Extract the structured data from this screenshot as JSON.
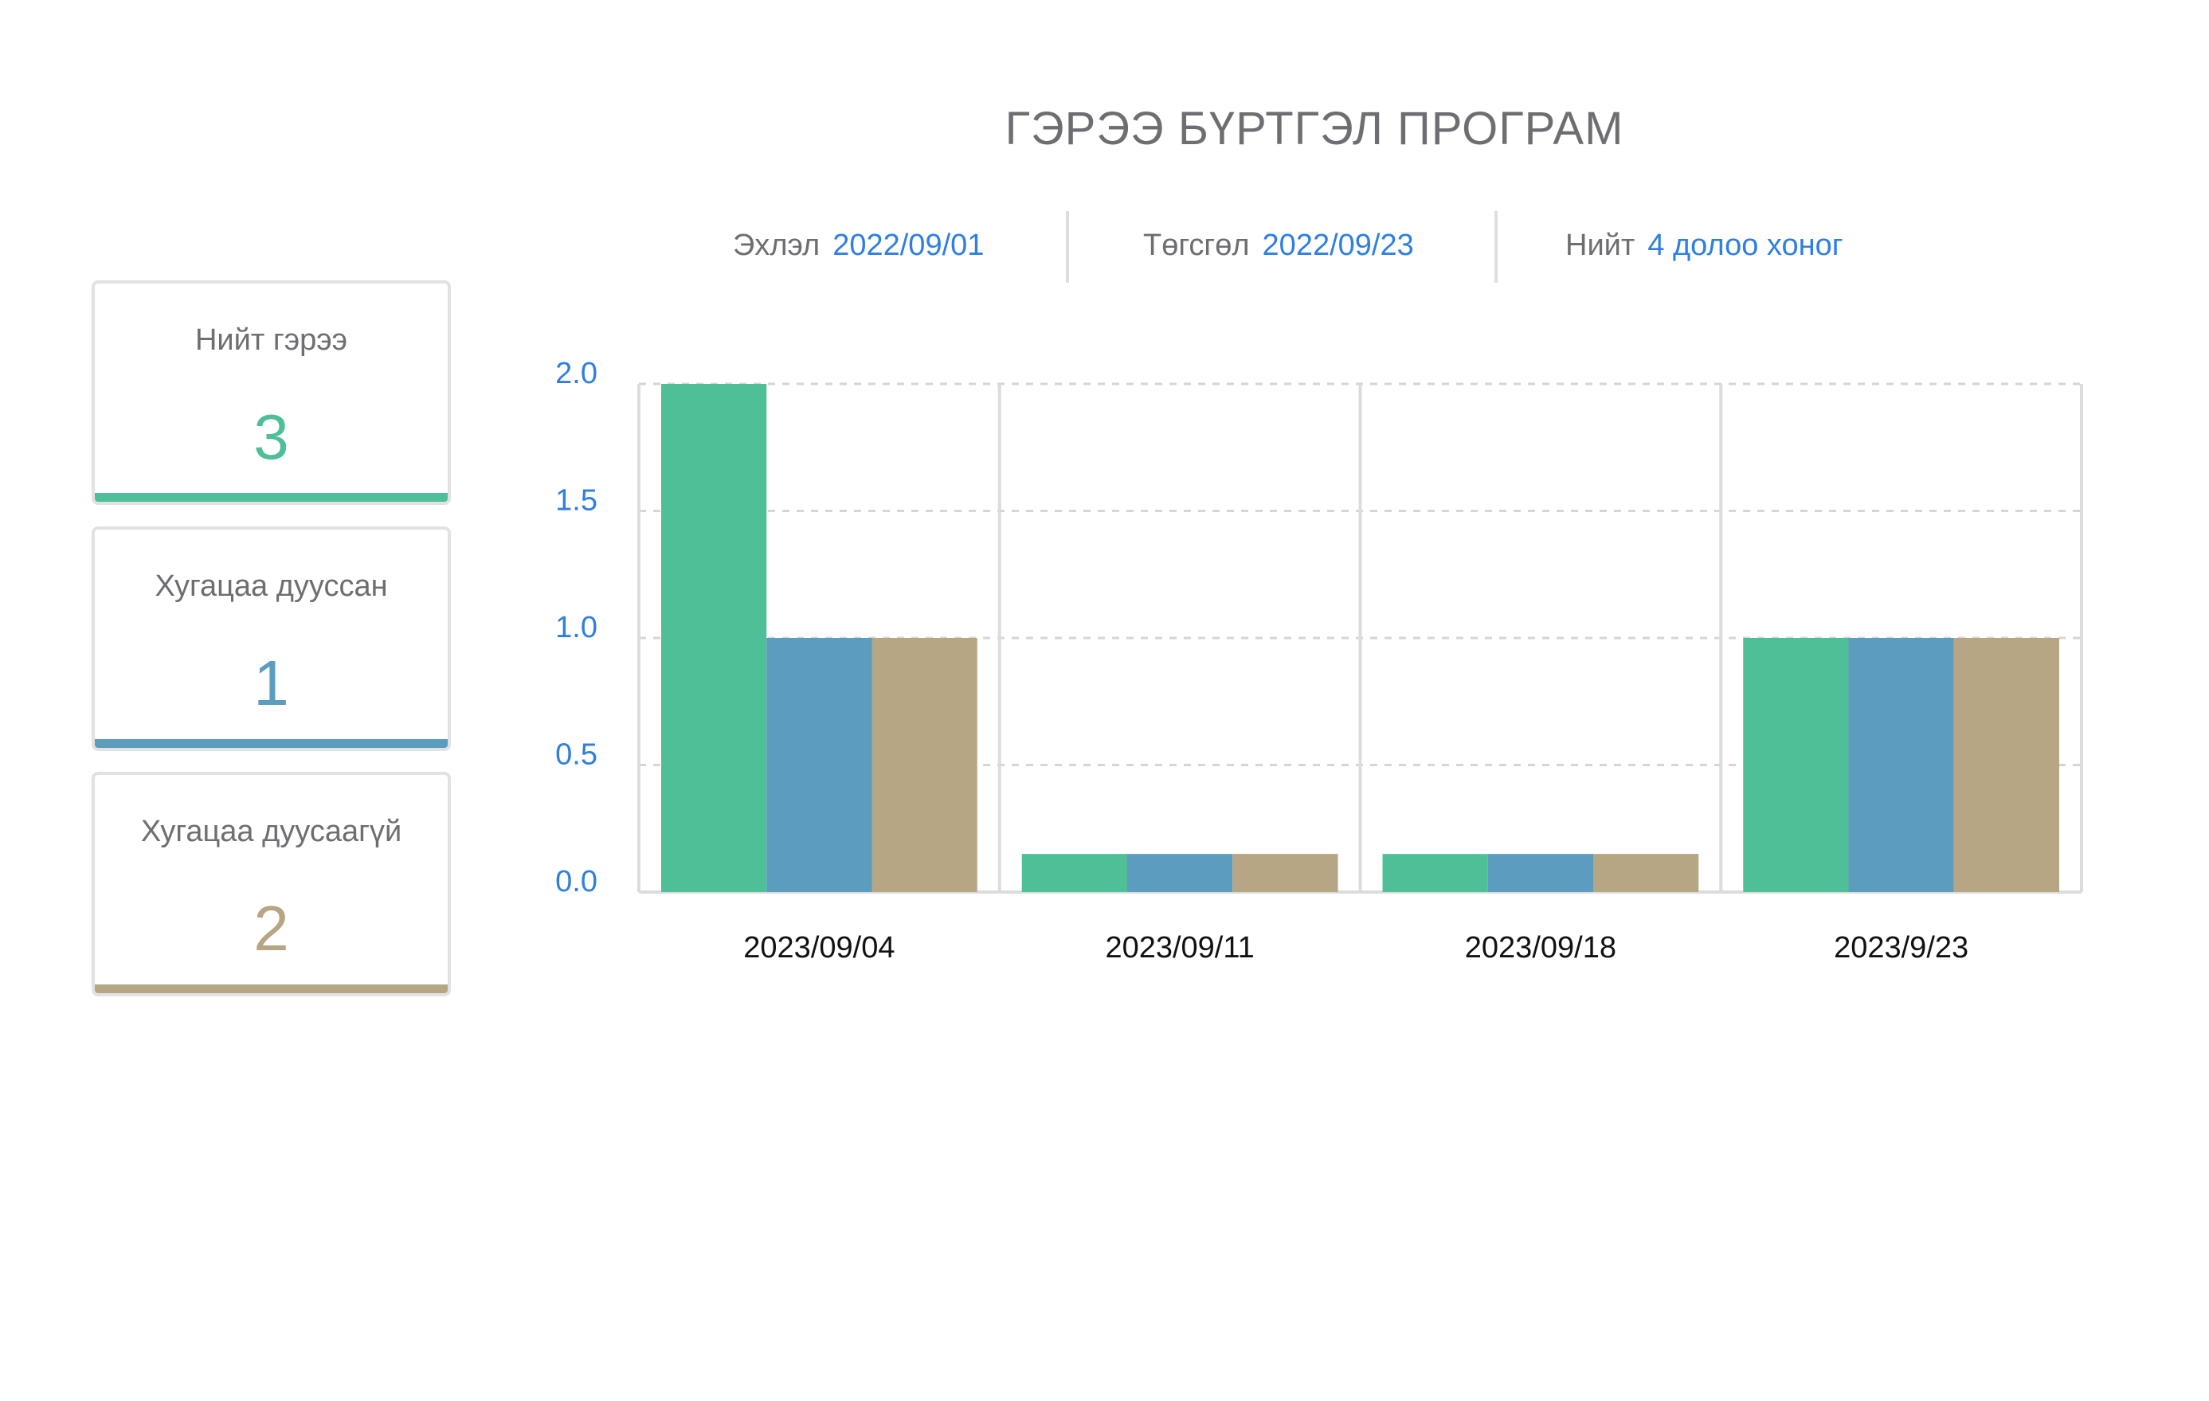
{
  "header": {
    "title": "ГЭРЭЭ БҮРТГЭЛ ПРОГРАМ"
  },
  "info": {
    "start_label": "Эхлэл",
    "start_value": "2022/09/01",
    "end_label": "Төгсгөл",
    "end_value": "2022/09/23",
    "total_label": "Нийт",
    "total_value": "4 долоо хоног"
  },
  "cards": [
    {
      "label": "Нийт гэрээ",
      "value": "3",
      "color": "#4fbf97"
    },
    {
      "label": "Хугацаа дууссан",
      "value": "1",
      "color": "#5b9cbf"
    },
    {
      "label": "Хугацаа дуусаагүй",
      "value": "2",
      "color": "#b7a683"
    }
  ],
  "chart_data": {
    "type": "bar",
    "categories": [
      "2023/09/04",
      "2023/09/11",
      "2023/09/18",
      "2023/9/23"
    ],
    "series": [
      {
        "values": [
          2.0,
          0.15,
          0.15,
          1.0
        ],
        "color": "#4fbf97"
      },
      {
        "values": [
          1.0,
          0.15,
          0.15,
          1.0
        ],
        "color": "#5b9cbf"
      },
      {
        "values": [
          1.0,
          0.15,
          0.15,
          1.0
        ],
        "color": "#b7a683"
      }
    ],
    "y_ticks": [
      "0.0",
      "0.5",
      "1.0",
      "1.5",
      "2.0"
    ],
    "ylim": [
      0,
      2.0
    ],
    "grid": true,
    "tick_color": "#2f7fe0"
  }
}
